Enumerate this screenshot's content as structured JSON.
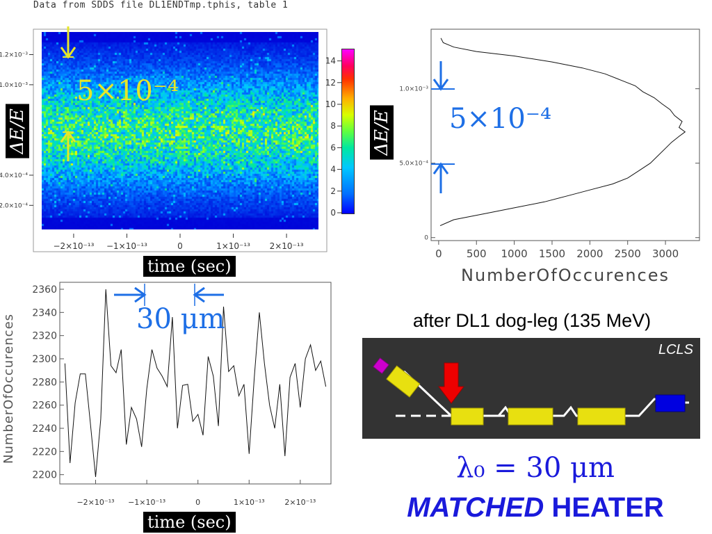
{
  "header": "Data from SDDS file DL1ENDTmp.tphis, table 1",
  "heatmap": {
    "ylabel": "ΔE/E",
    "xlabel": "time (sec)",
    "y_ticks": [
      "1.2×10⁻³",
      "1.0×10⁻³",
      "4.0×10⁻⁴",
      "2.0×10⁻⁴"
    ],
    "x_ticks": [
      "−2×10⁻¹³",
      "−1×10⁻¹³",
      "0",
      "1×10⁻¹³",
      "2×10⁻¹³"
    ],
    "colorbar_ticks": [
      "14",
      "12",
      "10",
      "8",
      "6",
      "4",
      "2",
      "0"
    ],
    "annotation": "5×10⁻⁴",
    "colors": {
      "low": "#0000d8",
      "mid": "#00c8ff",
      "high": "#ffee00"
    }
  },
  "profile": {
    "ylabel": "ΔE/E",
    "xlabel": "NumberOfOccurences",
    "y_ticks": [
      "1.0×10⁻³",
      "5.0×10⁻⁴",
      "0"
    ],
    "x_ticks": [
      "0",
      "500",
      "1000",
      "1500",
      "2000",
      "2500",
      "3000"
    ],
    "annotation": "5×10⁻⁴"
  },
  "line_plot": {
    "ylabel": "NumberOfOccurences",
    "xlabel": "time (sec)",
    "y_ticks": [
      "2360",
      "2340",
      "2320",
      "2300",
      "2280",
      "2260",
      "2240",
      "2220",
      "2200"
    ],
    "x_ticks": [
      "−2×10⁻¹³",
      "−1×10⁻¹³",
      "0",
      "1×10⁻¹³",
      "2×10⁻¹³"
    ],
    "annotation": "30 μm"
  },
  "diagram": {
    "caption": "after DL1 dog-leg (135 MeV)",
    "corner_label": "LCLS"
  },
  "lambda_text": "λ₀ = 30 μm",
  "matched_italic": "MATCHED",
  "matched_rest": " HEATER",
  "chart_data": [
    {
      "type": "heatmap",
      "xlabel": "time (sec)",
      "ylabel": "ΔE/E",
      "xlim": [
        -2.6e-13,
        2.6e-13
      ],
      "ylim": [
        4e-05,
        0.00135
      ],
      "color_range": [
        0,
        15
      ],
      "colorbar_ticks": [
        0,
        2,
        4,
        6,
        8,
        10,
        12,
        14
      ],
      "note": "density peaked near ΔE/E ≈ 0.0007, roughly uniform in time"
    },
    {
      "type": "line",
      "xlabel": "NumberOfOccurences",
      "ylabel": "ΔE/E",
      "xlim": [
        -100,
        3450
      ],
      "ylim": [
        -2e-05,
        0.0014
      ],
      "x_ticks": [
        0,
        500,
        1000,
        1500,
        2000,
        2500,
        3000
      ],
      "y_ticks": [
        0,
        0.0005,
        0.001
      ],
      "points": [
        [
          20,
          8e-05
        ],
        [
          200,
          0.00012
        ],
        [
          600,
          0.00016
        ],
        [
          1000,
          0.0002
        ],
        [
          1400,
          0.00024
        ],
        [
          1700,
          0.00028
        ],
        [
          2000,
          0.00032
        ],
        [
          2300,
          0.00036
        ],
        [
          2500,
          0.0004
        ],
        [
          2650,
          0.00045
        ],
        [
          2800,
          0.0005
        ],
        [
          2900,
          0.00055
        ],
        [
          3000,
          0.0006
        ],
        [
          3080,
          0.00064
        ],
        [
          3180,
          0.00068
        ],
        [
          3260,
          0.00071
        ],
        [
          3180,
          0.00074
        ],
        [
          3220,
          0.00078
        ],
        [
          3120,
          0.00082
        ],
        [
          3060,
          0.00086
        ],
        [
          2950,
          0.0009
        ],
        [
          2850,
          0.00094
        ],
        [
          2700,
          0.00098
        ],
        [
          2600,
          0.00102
        ],
        [
          2400,
          0.00106
        ],
        [
          2200,
          0.0011
        ],
        [
          1900,
          0.00114
        ],
        [
          1500,
          0.00118
        ],
        [
          1000,
          0.00122
        ],
        [
          500,
          0.00125
        ],
        [
          200,
          0.00128
        ],
        [
          60,
          0.00131
        ],
        [
          30,
          0.00134
        ]
      ]
    },
    {
      "type": "line",
      "xlabel": "time (sec)",
      "ylabel": "NumberOfOccurences",
      "xlim": [
        -2.7e-13,
        2.6e-13
      ],
      "ylim": [
        2192,
        2366
      ],
      "y_ticks": [
        2200,
        2220,
        2240,
        2260,
        2280,
        2300,
        2320,
        2340,
        2360
      ],
      "x": [
        -2.6e-13,
        -2.5e-13,
        -2.4e-13,
        -2.3e-13,
        -2.2e-13,
        -2.1e-13,
        -2e-13,
        -1.9e-13,
        -1.8e-13,
        -1.7e-13,
        -1.6e-13,
        -1.5e-13,
        -1.4e-13,
        -1.3e-13,
        -1.2e-13,
        -1.1e-13,
        -1e-13,
        -9e-14,
        -8e-14,
        -7e-14,
        -6e-14,
        -5e-14,
        -4e-14,
        -3e-14,
        -2e-14,
        -1e-14,
        0,
        1e-14,
        2e-14,
        3e-14,
        4e-14,
        5e-14,
        6e-14,
        7e-14,
        8e-14,
        9e-14,
        1e-13,
        1.1e-13,
        1.2e-13,
        1.3e-13,
        1.4e-13,
        1.5e-13,
        1.6e-13,
        1.7e-13,
        1.8e-13,
        1.9e-13,
        2e-13,
        2.1e-13,
        2.2e-13,
        2.3e-13,
        2.4e-13,
        2.5e-13
      ],
      "y": [
        2296,
        2210,
        2262,
        2287,
        2287,
        2243,
        2198,
        2248,
        2360,
        2294,
        2288,
        2308,
        2226,
        2258,
        2248,
        2224,
        2274,
        2308,
        2292,
        2285,
        2276,
        2336,
        2240,
        2277,
        2278,
        2246,
        2252,
        2234,
        2302,
        2285,
        2242,
        2345,
        2289,
        2294,
        2268,
        2278,
        2218,
        2283,
        2340,
        2296,
        2260,
        2240,
        2278,
        2216,
        2284,
        2296,
        2258,
        2300,
        2312,
        2290,
        2298,
        2276
      ]
    }
  ]
}
